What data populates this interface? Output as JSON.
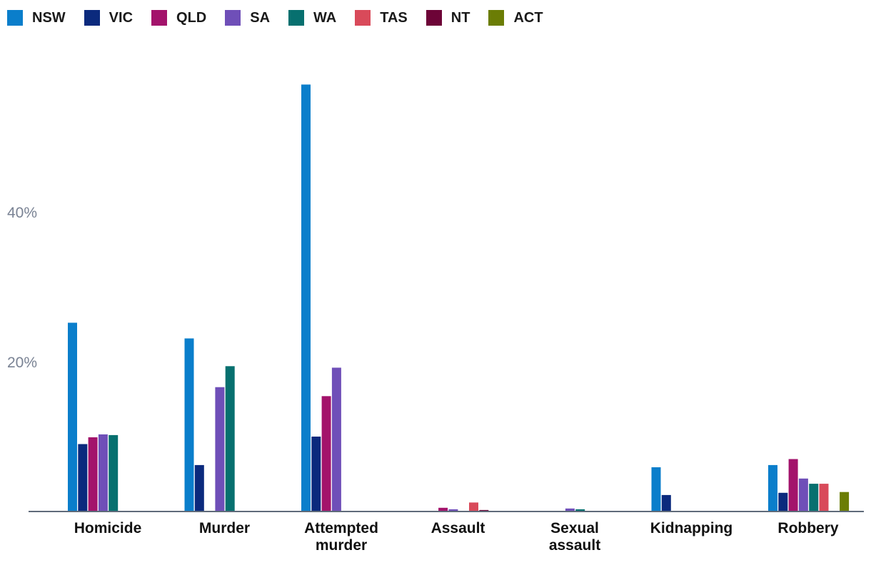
{
  "chart_data": {
    "type": "bar",
    "categories": [
      "Homicide",
      "Murder",
      "Attempted murder",
      "Assault",
      "Sexual assault",
      "Kidnapping",
      "Robbery"
    ],
    "category_lines": [
      [
        "Homicide"
      ],
      [
        "Murder"
      ],
      [
        "Attempted",
        "murder"
      ],
      [
        "Assault"
      ],
      [
        "Sexual",
        "assault"
      ],
      [
        "Kidnapping"
      ],
      [
        "Robbery"
      ]
    ],
    "series": [
      {
        "name": "NSW",
        "color": "#0a7ecb",
        "values": [
          25.2,
          23.1,
          57.0,
          0,
          0,
          5.9,
          6.2
        ]
      },
      {
        "name": "VIC",
        "color": "#0b2a7d",
        "values": [
          9.0,
          6.2,
          10.0,
          0,
          0,
          2.2,
          2.5
        ]
      },
      {
        "name": "QLD",
        "color": "#a3136b",
        "values": [
          9.9,
          0,
          15.4,
          0.5,
          0,
          0,
          7.0
        ]
      },
      {
        "name": "SA",
        "color": "#6f4fb8",
        "values": [
          10.3,
          16.6,
          19.2,
          0.3,
          0.4,
          0,
          4.4
        ]
      },
      {
        "name": "WA",
        "color": "#07706f",
        "values": [
          10.2,
          19.4,
          0,
          0,
          0.3,
          0,
          3.7
        ]
      },
      {
        "name": "TAS",
        "color": "#d94a5a",
        "values": [
          0,
          0,
          0,
          1.2,
          0,
          0,
          3.7
        ]
      },
      {
        "name": "NT",
        "color": "#6d0437",
        "values": [
          0,
          0,
          0,
          0.2,
          0,
          0,
          0
        ]
      },
      {
        "name": "ACT",
        "color": "#6b7d05",
        "values": [
          0,
          0,
          0,
          0,
          0,
          0,
          2.6
        ]
      }
    ],
    "yticks": [
      {
        "value": 20,
        "label": "20%"
      },
      {
        "value": 40,
        "label": "40%"
      }
    ],
    "ylim": [
      0,
      60
    ],
    "title": "",
    "xlabel": "",
    "ylabel": "",
    "legend_position": "top-left",
    "grid": false
  }
}
